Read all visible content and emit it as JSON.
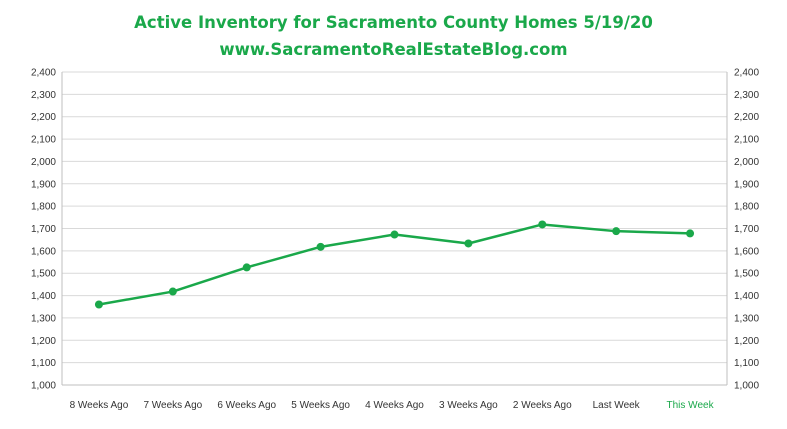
{
  "chart_data": {
    "type": "line",
    "title": "Active Inventory for Sacramento County Homes 5/19/20",
    "subtitle": "www.SacramentoRealEstateBlog.com",
    "categories": [
      "8 Weeks Ago",
      "7 Weeks Ago",
      "6 Weeks Ago",
      "5 Weeks Ago",
      "4 Weeks Ago",
      "3 Weeks Ago",
      "2 Weeks Ago",
      "Last Week",
      "This Week"
    ],
    "highlight_category": "This Week",
    "series": [
      {
        "values": [
          1360,
          1418,
          1526,
          1618,
          1673,
          1633,
          1718,
          1688,
          1678
        ]
      }
    ],
    "ylim": [
      1000,
      2400
    ],
    "yticks": [
      1000,
      1100,
      1200,
      1300,
      1400,
      1500,
      1600,
      1700,
      1800,
      1900,
      2000,
      2100,
      2200,
      2300,
      2400
    ],
    "secondary_axis": true,
    "grid": true,
    "legend": "none",
    "colors": {
      "line": "#1aa84a",
      "title": "#1aa84a",
      "grid": "#d9d9d9",
      "axis": "#bfbfbf"
    }
  }
}
